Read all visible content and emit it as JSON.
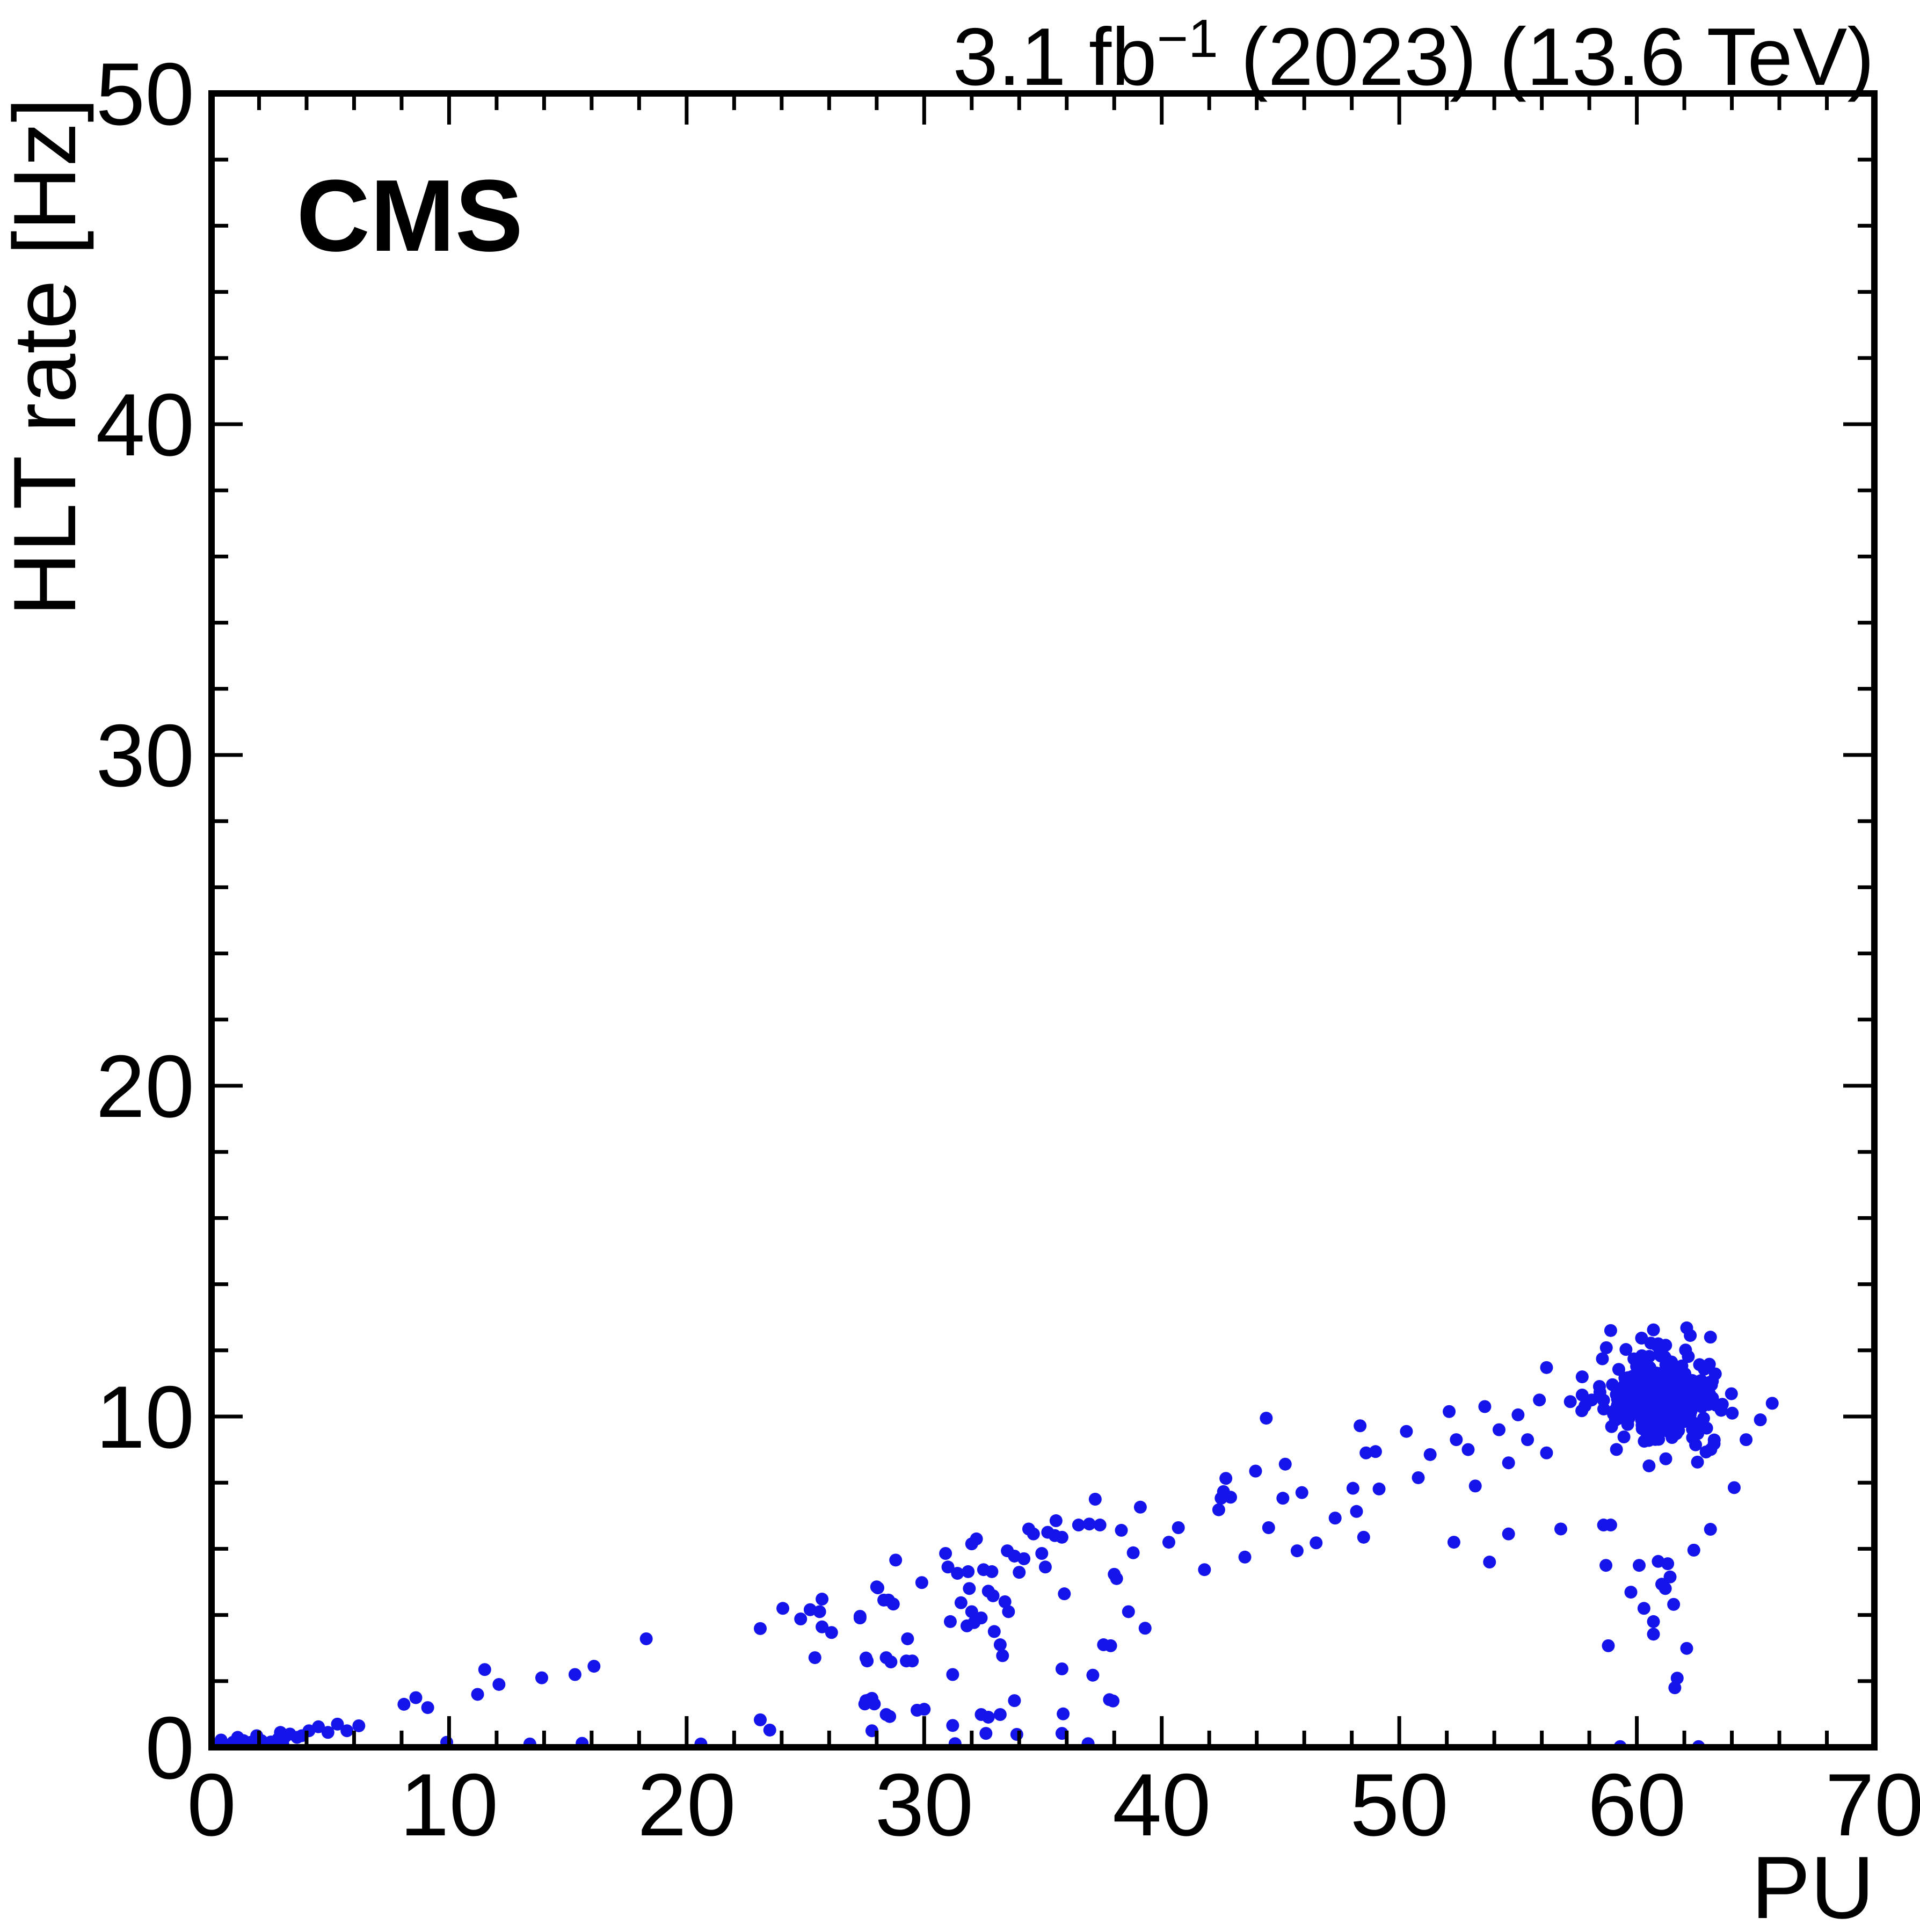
{
  "header": {
    "experiment_label": "CMS",
    "lumi_prefix": "3.1 fb",
    "lumi_exponent": "−1",
    "lumi_suffix": " (2023) (13.6 TeV)"
  },
  "chart_data": {
    "type": "scatter",
    "title": "3.1 fb^{-1} (2023) (13.6 TeV)",
    "xlabel": "PU",
    "ylabel": "HLT rate [Hz]",
    "xlim": [
      0,
      70
    ],
    "ylim": [
      0,
      50
    ],
    "x_major_ticks": [
      0,
      10,
      20,
      30,
      40,
      50,
      60,
      70
    ],
    "y_major_ticks": [
      0,
      10,
      20,
      30,
      40,
      50
    ],
    "minor_tick_step": 2,
    "grid": false,
    "legend": "none",
    "marker": {
      "shape": "circle",
      "radius_px": 12,
      "color": "#1414eb"
    },
    "points": [
      [
        0.3,
        0.05
      ],
      [
        0.5,
        0.1
      ],
      [
        0.7,
        0.04
      ],
      [
        0.9,
        0.15
      ],
      [
        1.0,
        0.06
      ],
      [
        1.2,
        0.1
      ],
      [
        1.35,
        0.2
      ],
      [
        1.5,
        0.05
      ],
      [
        1.65,
        0.15
      ],
      [
        1.8,
        0.08
      ],
      [
        2.0,
        0.05
      ],
      [
        2.1,
        0.2
      ],
      [
        2.3,
        0.12
      ],
      [
        2.5,
        0.16
      ],
      [
        2.6,
        0.05
      ],
      [
        2.8,
        0.25
      ],
      [
        3.0,
        0.1
      ],
      [
        3.1,
        0.32
      ],
      [
        0.4,
        0.22
      ],
      [
        1.1,
        0.3
      ],
      [
        1.9,
        0.35
      ],
      [
        2.9,
        0.45
      ],
      [
        3.3,
        0.4
      ],
      [
        3.6,
        0.3
      ],
      [
        3.8,
        0.35
      ],
      [
        4.1,
        0.5
      ],
      [
        4.5,
        0.62
      ],
      [
        4.9,
        0.45
      ],
      [
        5.3,
        0.7
      ],
      [
        5.7,
        0.5
      ],
      [
        6.2,
        0.65
      ],
      [
        8.1,
        1.3
      ],
      [
        8.6,
        1.5
      ],
      [
        9.1,
        1.2
      ],
      [
        9.9,
        0.15
      ],
      [
        11.2,
        1.6
      ],
      [
        11.5,
        2.35
      ],
      [
        12.1,
        1.9
      ],
      [
        13.4,
        0.1
      ],
      [
        13.9,
        2.1
      ],
      [
        15.3,
        2.2
      ],
      [
        15.6,
        0.12
      ],
      [
        16.1,
        2.45
      ],
      [
        18.3,
        3.28
      ],
      [
        20.6,
        0.1
      ],
      [
        23.1,
        3.59
      ],
      [
        23.1,
        0.83
      ],
      [
        23.5,
        0.52
      ],
      [
        24.05,
        4.2
      ],
      [
        24.8,
        3.88
      ],
      [
        25.2,
        4.16
      ],
      [
        25.6,
        4.1
      ],
      [
        25.7,
        4.48
      ],
      [
        25.4,
        2.71
      ],
      [
        25.7,
        3.64
      ],
      [
        26.1,
        3.47
      ],
      [
        27.3,
        3.96
      ],
      [
        27.55,
        2.7
      ],
      [
        28.4,
        2.71
      ],
      [
        27.55,
        1.41
      ],
      [
        27.8,
        1.48
      ],
      [
        28.4,
        0.99
      ],
      [
        27.8,
        0.5
      ],
      [
        28.05,
        4.82
      ],
      [
        28.3,
        4.45
      ],
      [
        27.3,
        3.91
      ],
      [
        28.0,
        4.85
      ],
      [
        28.5,
        4.45
      ],
      [
        28.7,
        4.33
      ],
      [
        28.8,
        5.66
      ],
      [
        29.3,
        3.28
      ],
      [
        29.9,
        4.98
      ],
      [
        27.6,
        2.61
      ],
      [
        28.6,
        2.58
      ],
      [
        29.25,
        2.61
      ],
      [
        29.5,
        2.61
      ],
      [
        27.7,
        1.44
      ],
      [
        27.5,
        1.31
      ],
      [
        27.9,
        1.31
      ],
      [
        28.55,
        0.93
      ],
      [
        29.7,
        1.12
      ],
      [
        30.0,
        1.15
      ],
      [
        30.9,
        5.86
      ],
      [
        31.0,
        5.45
      ],
      [
        31.4,
        5.26
      ],
      [
        31.85,
        5.31
      ],
      [
        32.2,
        6.3
      ],
      [
        32.0,
        6.15
      ],
      [
        32.5,
        5.37
      ],
      [
        32.85,
        5.31
      ],
      [
        34.0,
        5.29
      ],
      [
        33.5,
        5.94
      ],
      [
        33.8,
        5.78
      ],
      [
        34.2,
        5.7
      ],
      [
        34.4,
        6.6
      ],
      [
        34.6,
        6.45
      ],
      [
        35.2,
        6.5
      ],
      [
        35.5,
        6.4
      ],
      [
        35.8,
        6.35
      ],
      [
        34.95,
        5.86
      ],
      [
        35.1,
        5.45
      ],
      [
        35.55,
        6.85
      ],
      [
        36.5,
        6.72
      ],
      [
        36.95,
        6.75
      ],
      [
        37.4,
        6.72
      ],
      [
        37.2,
        7.5
      ],
      [
        38.0,
        5.23
      ],
      [
        31.9,
        4.8
      ],
      [
        31.55,
        4.37
      ],
      [
        32.7,
        4.72
      ],
      [
        32.9,
        4.58
      ],
      [
        32.0,
        4.1
      ],
      [
        32.4,
        3.91
      ],
      [
        32.1,
        3.77
      ],
      [
        31.8,
        3.67
      ],
      [
        33.4,
        4.4
      ],
      [
        33.55,
        4.1
      ],
      [
        32.95,
        3.5
      ],
      [
        31.1,
        3.8
      ],
      [
        35.9,
        4.64
      ],
      [
        31.2,
        2.2
      ],
      [
        33.2,
        3.1
      ],
      [
        33.3,
        2.77
      ],
      [
        33.8,
        1.41
      ],
      [
        35.8,
        2.37
      ],
      [
        37.85,
        3.07
      ],
      [
        37.55,
        3.1
      ],
      [
        37.1,
        2.18
      ],
      [
        37.95,
        1.4
      ],
      [
        31.2,
        0.66
      ],
      [
        31.3,
        0.11
      ],
      [
        32.4,
        0.99
      ],
      [
        32.7,
        0.91
      ],
      [
        33.2,
        0.99
      ],
      [
        32.6,
        0.42
      ],
      [
        33.9,
        0.39
      ],
      [
        35.85,
        1.01
      ],
      [
        35.8,
        0.42
      ],
      [
        36.9,
        0.11
      ],
      [
        37.8,
        1.44
      ],
      [
        38.3,
        6.56
      ],
      [
        38.1,
        5.1
      ],
      [
        38.8,
        5.88
      ],
      [
        38.6,
        4.1
      ],
      [
        39.1,
        7.26
      ],
      [
        39.3,
        3.6
      ],
      [
        40.3,
        6.2
      ],
      [
        40.7,
        6.64
      ],
      [
        41.8,
        5.37
      ],
      [
        42.4,
        7.18
      ],
      [
        42.5,
        7.53
      ],
      [
        42.6,
        7.73
      ],
      [
        42.7,
        8.13
      ],
      [
        42.9,
        7.56
      ],
      [
        43.5,
        5.75
      ],
      [
        43.95,
        8.35
      ],
      [
        44.4,
        9.95
      ],
      [
        44.5,
        6.64
      ],
      [
        45.1,
        7.53
      ],
      [
        45.2,
        8.56
      ],
      [
        45.7,
        5.94
      ],
      [
        45.9,
        7.7
      ],
      [
        46.5,
        6.18
      ],
      [
        47.3,
        6.93
      ],
      [
        48.05,
        7.83
      ],
      [
        48.2,
        7.13
      ],
      [
        48.35,
        9.72
      ],
      [
        48.5,
        6.35
      ],
      [
        48.6,
        8.9
      ],
      [
        49.0,
        8.94
      ],
      [
        49.15,
        7.81
      ],
      [
        50.3,
        9.55
      ],
      [
        50.8,
        8.15
      ],
      [
        51.3,
        8.85
      ],
      [
        52.1,
        10.15
      ],
      [
        52.4,
        9.3
      ],
      [
        52.9,
        9.0
      ],
      [
        53.2,
        7.9
      ],
      [
        53.6,
        10.3
      ],
      [
        54.2,
        9.6
      ],
      [
        54.6,
        8.6
      ],
      [
        55.0,
        10.05
      ],
      [
        55.4,
        9.3
      ],
      [
        55.9,
        10.5
      ],
      [
        56.2,
        8.9
      ],
      [
        52.3,
        6.2
      ],
      [
        54.6,
        6.45
      ],
      [
        53.8,
        5.6
      ],
      [
        56.8,
        6.6
      ],
      [
        56.2,
        11.48
      ],
      [
        57.7,
        11.2
      ],
      [
        57.2,
        10.45
      ],
      [
        57.7,
        10.65
      ],
      [
        58.1,
        10.5
      ],
      [
        58.9,
        12.6
      ],
      [
        60.7,
        12.62
      ],
      [
        62.1,
        12.68
      ],
      [
        62.25,
        12.45
      ],
      [
        63.1,
        12.4
      ],
      [
        60.2,
        12.37
      ],
      [
        60.9,
        12.2
      ],
      [
        58.6,
        6.72
      ],
      [
        58.9,
        6.72
      ],
      [
        63.1,
        6.59
      ],
      [
        62.4,
        5.96
      ],
      [
        58.7,
        5.5
      ],
      [
        60.1,
        5.5
      ],
      [
        60.9,
        5.62
      ],
      [
        61.3,
        5.55
      ],
      [
        61.4,
        5.15
      ],
      [
        61.05,
        4.93
      ],
      [
        61.2,
        4.8
      ],
      [
        59.75,
        4.69
      ],
      [
        61.55,
        4.32
      ],
      [
        60.3,
        4.2
      ],
      [
        60.7,
        3.8
      ],
      [
        60.7,
        3.42
      ],
      [
        58.8,
        3.07
      ],
      [
        62.1,
        2.99
      ],
      [
        61.7,
        2.09
      ],
      [
        61.6,
        1.8
      ],
      [
        59.3,
        0.02
      ],
      [
        62.6,
        0.02
      ],
      [
        64.1,
        7.85
      ],
      [
        65.7,
        10.4
      ],
      [
        65.2,
        9.9
      ],
      [
        64.6,
        9.3
      ]
    ],
    "cluster": {
      "description": "dense quasi-gaussian blob of luminosity-section points",
      "n": 300,
      "center": [
        61.2,
        10.55
      ],
      "sigma": [
        1.15,
        0.7
      ],
      "clip_x": [
        56.8,
        65.3
      ],
      "clip_y": [
        8.2,
        12.7
      ],
      "seed": 123456789
    }
  },
  "style": {
    "marker_color": "#1414eb",
    "axis_color": "#000000",
    "background": "#ffffff"
  }
}
